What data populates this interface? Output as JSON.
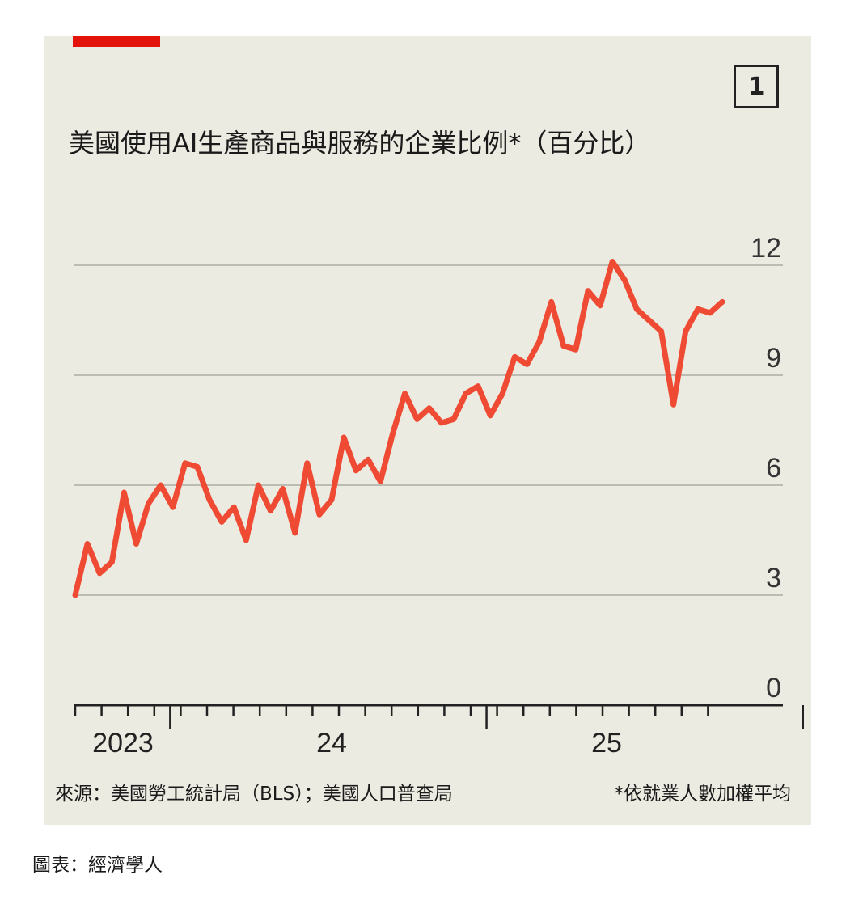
{
  "badge": "1",
  "title": "美國使用AI生產商品與服務的企業比例*（百分比）",
  "source": "來源：美國勞工統計局（BLS）；美國人口普查局",
  "note": "*依就業人數加權平均",
  "credit": "圖表：經濟學人",
  "colors": {
    "accent": "#e3120b",
    "line": "#ef4b34",
    "panel": "#ecebe1",
    "grid": "#bdbcb2"
  },
  "chart_data": {
    "type": "line",
    "title": "美國使用AI生產商品與服務的企業比例*（百分比）",
    "y_ticks": [
      0,
      3,
      6,
      9,
      12
    ],
    "x_tick_labels": [
      "2023",
      "24",
      "25"
    ],
    "ylim": [
      0,
      12
    ],
    "grid": true,
    "y_axis_side": "right",
    "series": [
      {
        "values": [
          3.0,
          4.4,
          3.6,
          3.9,
          5.8,
          4.4,
          5.5,
          6.0,
          5.4,
          6.6,
          6.5,
          5.6,
          5.0,
          5.4,
          4.5,
          6.0,
          5.3,
          5.9,
          4.7,
          6.6,
          5.2,
          5.6,
          7.3,
          6.4,
          6.7,
          6.1,
          7.4,
          8.5,
          7.8,
          8.1,
          7.7,
          7.8,
          8.5,
          8.7,
          7.9,
          8.5,
          9.5,
          9.3,
          9.9,
          11.0,
          9.8,
          9.7,
          11.3,
          10.9,
          12.1,
          11.6,
          10.8,
          10.5,
          10.2,
          8.2,
          10.2,
          10.8,
          10.7,
          11.0
        ]
      }
    ]
  }
}
